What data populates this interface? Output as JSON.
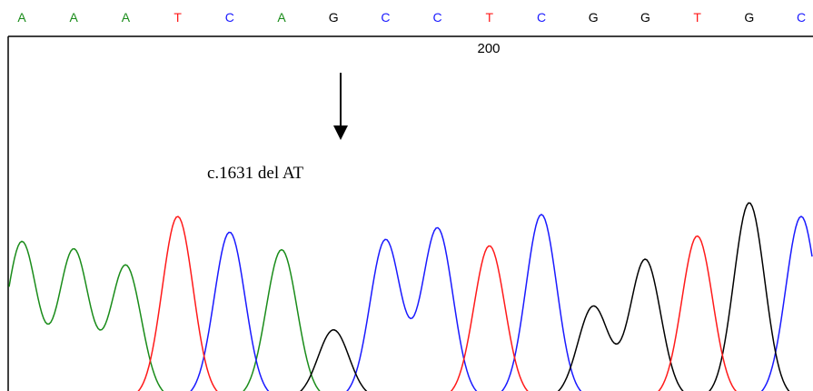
{
  "bases": [
    "A",
    "A",
    "A",
    "T",
    "C",
    "A",
    "G",
    "C",
    "C",
    "T",
    "C",
    "G",
    "G",
    "T",
    "G",
    "C"
  ],
  "position_marker": "200",
  "annotation": "c.1631 del AT",
  "colors": {
    "A": "#1a8c1a",
    "C": "#1a1aff",
    "G": "#000000",
    "T": "#ff1a1a",
    "frame": "#000000"
  },
  "chart_data": {
    "type": "line",
    "x": [
      "A",
      "A",
      "A",
      "T",
      "C",
      "A",
      "G",
      "C",
      "C",
      "T",
      "C",
      "G",
      "G",
      "T",
      "G",
      "C"
    ],
    "peaks": [
      {
        "base": "A",
        "intensity": 0.8
      },
      {
        "base": "A",
        "intensity": 0.76
      },
      {
        "base": "A",
        "intensity": 0.68
      },
      {
        "base": "T",
        "intensity": 0.93
      },
      {
        "base": "C",
        "intensity": 0.85
      },
      {
        "base": "A",
        "intensity": 0.76
      },
      {
        "base": "G",
        "intensity": 0.35
      },
      {
        "base": "C",
        "intensity": 0.81
      },
      {
        "base": "C",
        "intensity": 0.87
      },
      {
        "base": "T",
        "intensity": 0.78
      },
      {
        "base": "C",
        "intensity": 0.94
      },
      {
        "base": "G",
        "intensity": 0.47
      },
      {
        "base": "G",
        "intensity": 0.71
      },
      {
        "base": "T",
        "intensity": 0.83
      },
      {
        "base": "G",
        "intensity": 1.0
      },
      {
        "base": "C",
        "intensity": 0.93
      }
    ]
  }
}
